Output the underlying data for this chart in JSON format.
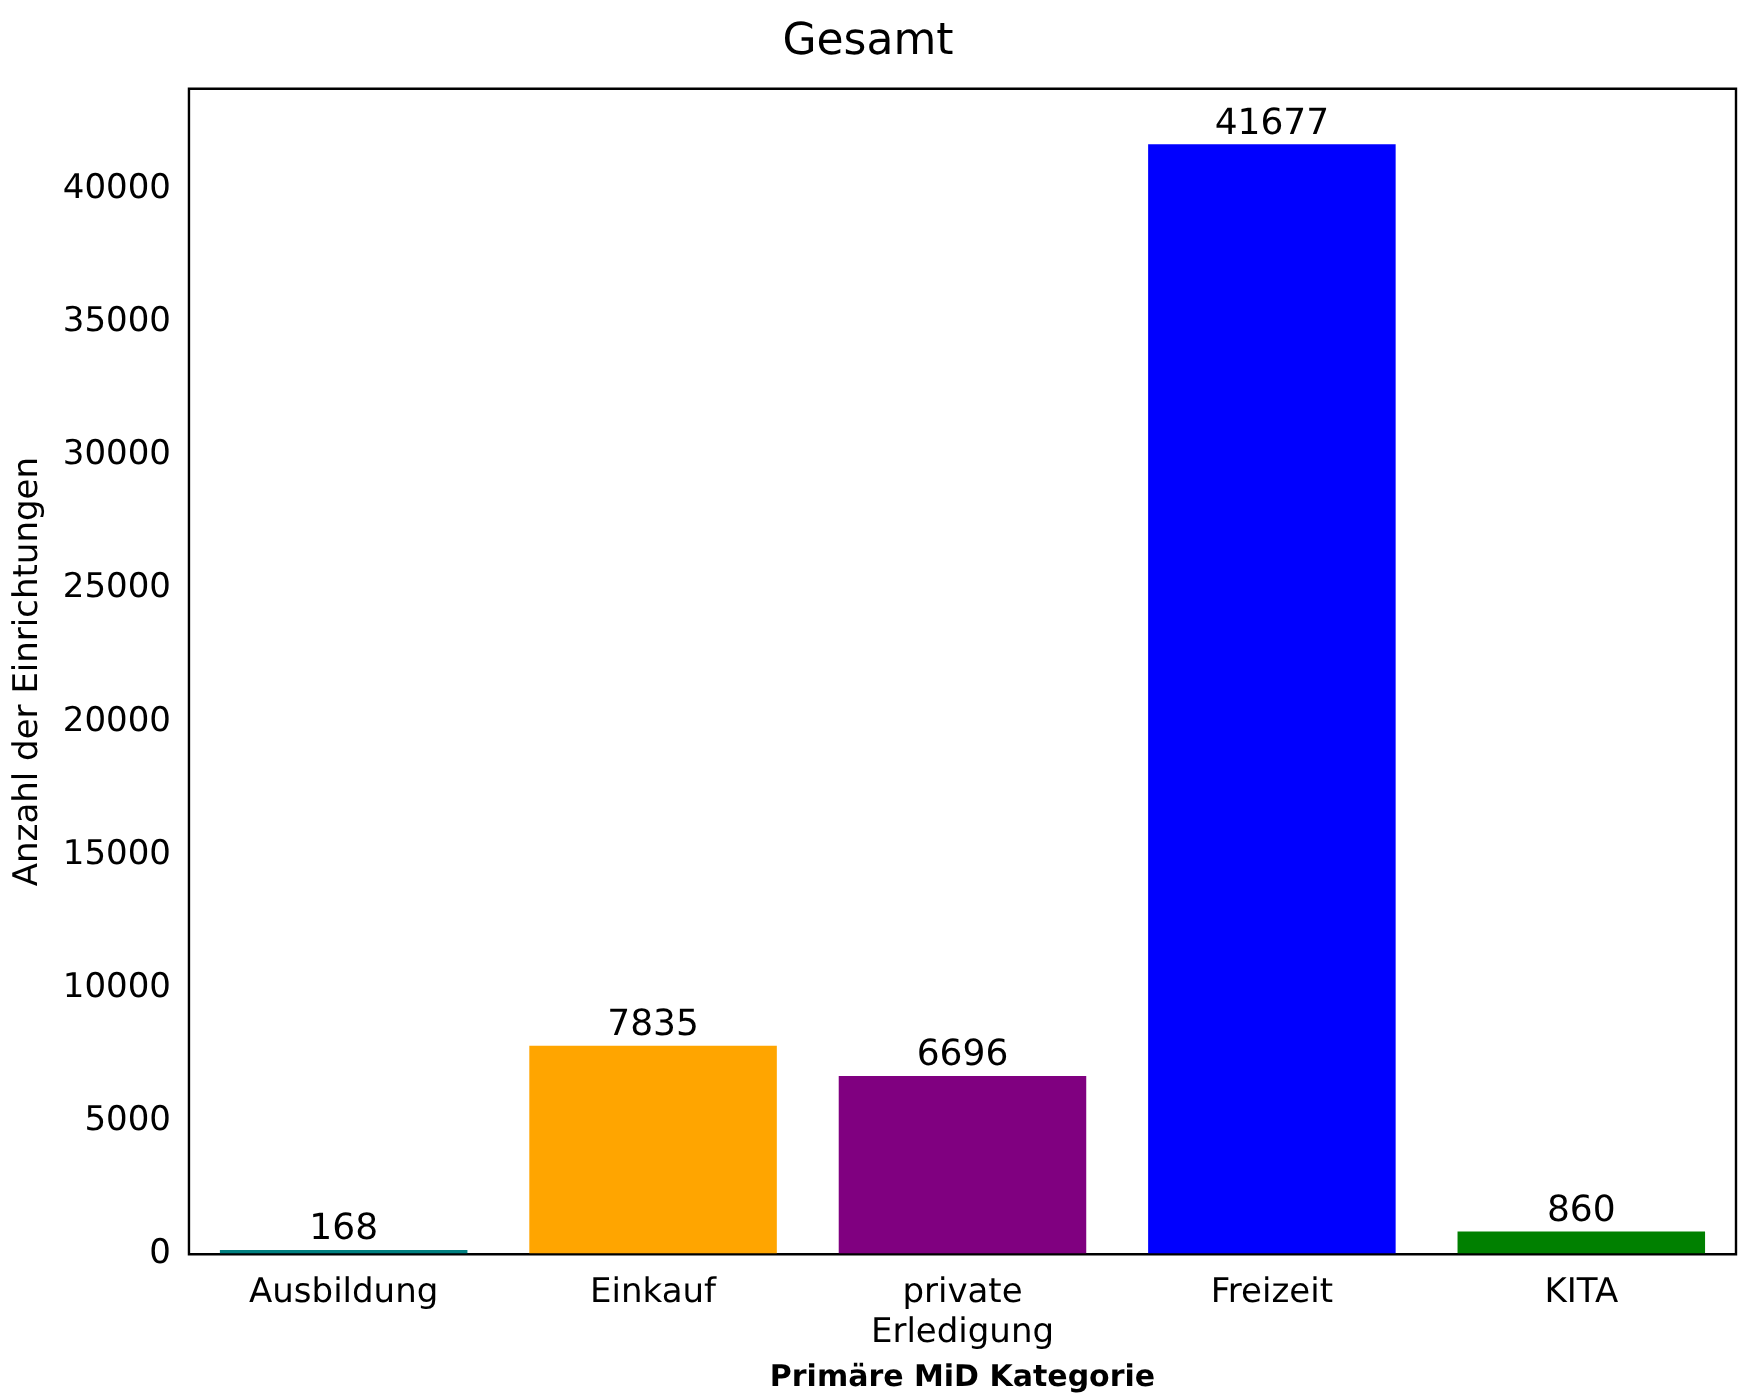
{
  "chart_data": {
    "type": "bar",
    "title": "Gesamt",
    "xlabel": "Primäre MiD Kategorie",
    "ylabel": "Anzahl der Einrichtungen",
    "categories": [
      "Ausbildung",
      "Einkauf",
      "private Erledigung",
      "Freizeit",
      "KITA"
    ],
    "values": [
      168,
      7835,
      6696,
      41677,
      860
    ],
    "colors": [
      "#008080",
      "#ffa500",
      "#800080",
      "#0000ff",
      "#008000"
    ],
    "ylim": [
      0,
      43760
    ],
    "yticks": [
      0,
      5000,
      10000,
      15000,
      20000,
      25000,
      30000,
      35000,
      40000
    ],
    "grid": false,
    "legend": false,
    "data_labels": true
  }
}
